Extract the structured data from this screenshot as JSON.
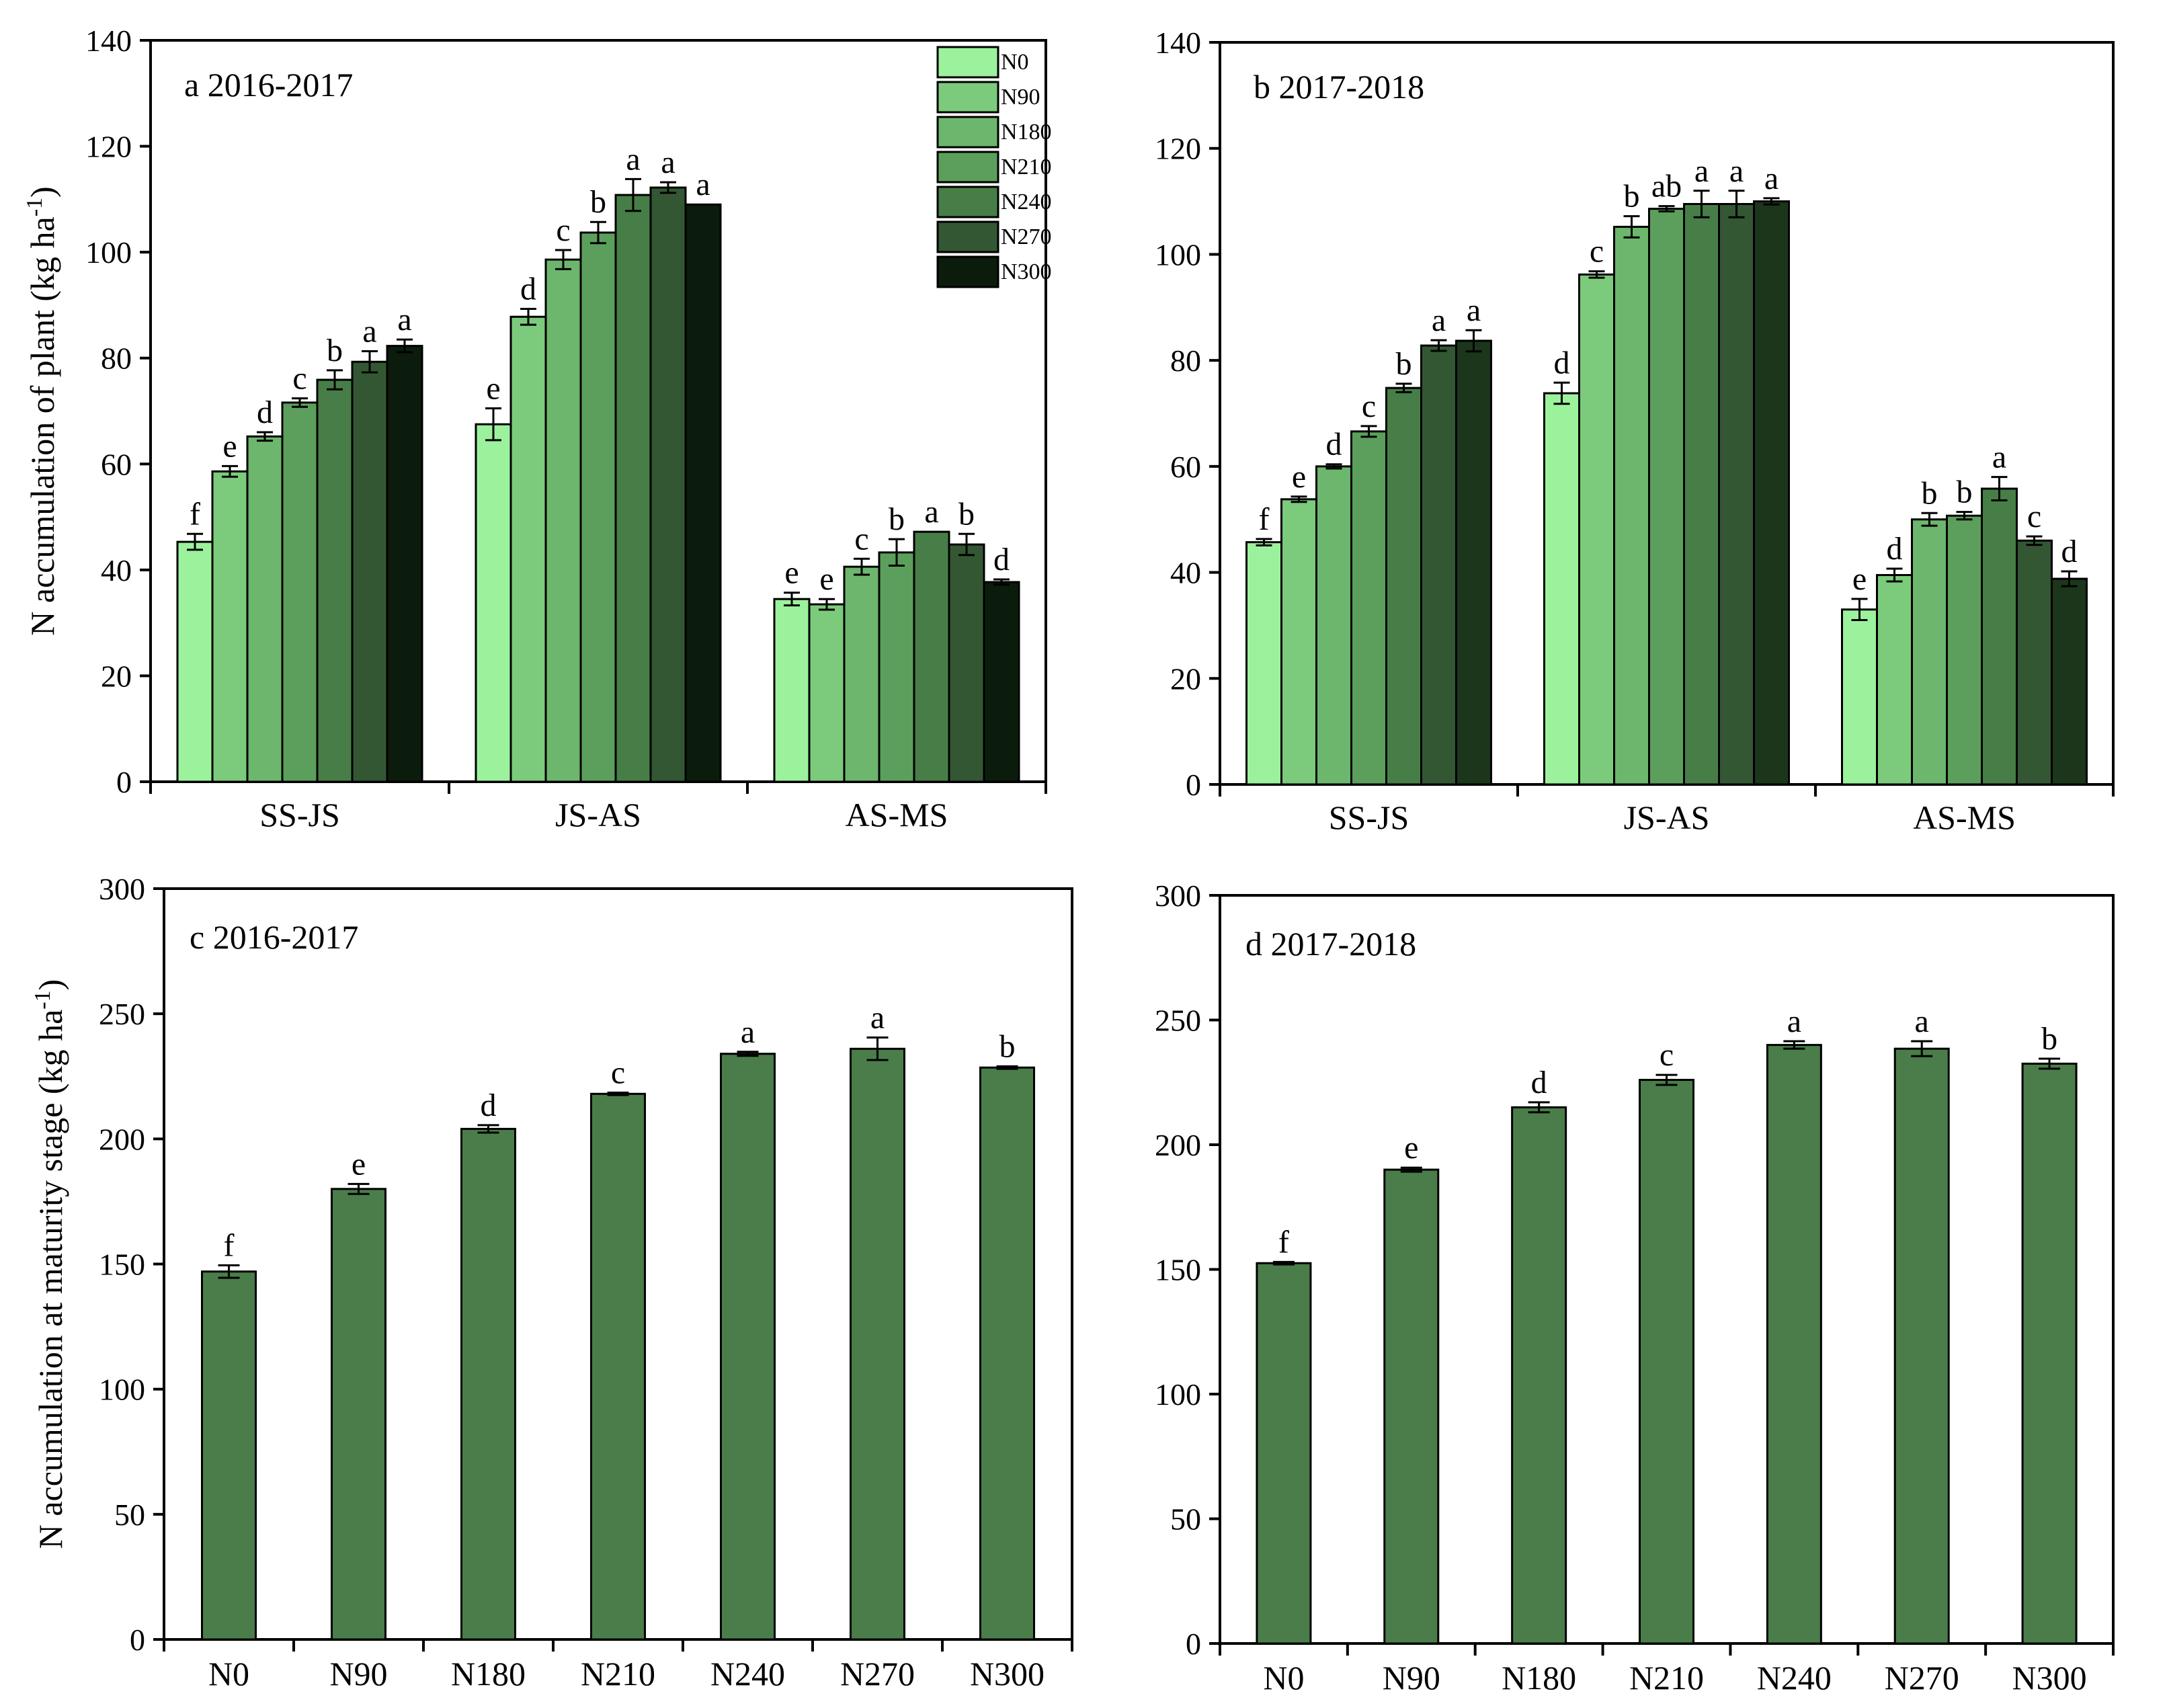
{
  "colors": {
    "N0": "#9cf29c",
    "N90": "#7ccb7c",
    "N180": "#6db66d",
    "N210": "#5c9f5c",
    "N240": "#477e47",
    "N270": "#335733",
    "N300": "#0c1c0c",
    "N300_b": "#1c361c",
    "maturity": "#4a7d4a"
  },
  "chart_data": [
    {
      "id": "a",
      "type": "bar",
      "title": "a 2016-2017",
      "ylabel": "N accumulation of plant (kg ha-1)",
      "ylabel_parts": [
        "N accumulation of plant (kg ha",
        "-1",
        ")"
      ],
      "ylim": [
        0,
        140
      ],
      "yticks": [
        0,
        20,
        40,
        60,
        80,
        100,
        120,
        140
      ],
      "categories": [
        "SS-JS",
        "JS-AS",
        "AS-MS"
      ],
      "legend": [
        "N0",
        "N90",
        "N180",
        "N210",
        "N240",
        "N270",
        "N300"
      ],
      "series": [
        {
          "name": "N0",
          "values": [
            45.3,
            67.5,
            34.5
          ],
          "errors": [
            1.5,
            3.0,
            1.2
          ],
          "letters": [
            "f",
            "e",
            "e"
          ]
        },
        {
          "name": "N90",
          "values": [
            58.6,
            87.8,
            33.5
          ],
          "errors": [
            1.0,
            1.5,
            1.0
          ],
          "letters": [
            "e",
            "d",
            "e"
          ]
        },
        {
          "name": "N180",
          "values": [
            65.2,
            98.6,
            40.6
          ],
          "errors": [
            0.8,
            1.8,
            1.5
          ],
          "letters": [
            "d",
            "c",
            "c"
          ]
        },
        {
          "name": "N210",
          "values": [
            71.6,
            103.7,
            43.3
          ],
          "errors": [
            0.8,
            2.0,
            2.5
          ],
          "letters": [
            "c",
            "b",
            "b"
          ]
        },
        {
          "name": "N240",
          "values": [
            75.9,
            110.8,
            47.2
          ],
          "errors": [
            1.8,
            3.0,
            0.0
          ],
          "letters": [
            "b",
            "a",
            "a"
          ]
        },
        {
          "name": "N270",
          "values": [
            79.3,
            112.2,
            44.8
          ],
          "errors": [
            2.0,
            1.0,
            2.0
          ],
          "letters": [
            "a",
            "a",
            "b"
          ]
        },
        {
          "name": "N300",
          "values": [
            82.3,
            109.0,
            37.7
          ],
          "errors": [
            1.2,
            0.0,
            0.5
          ],
          "letters": [
            "a",
            "a",
            "d"
          ]
        }
      ]
    },
    {
      "id": "b",
      "type": "bar",
      "title": "b 2017-2018",
      "ylabel": "",
      "ylim": [
        0,
        140
      ],
      "yticks": [
        0,
        20,
        40,
        60,
        80,
        100,
        120,
        140
      ],
      "categories": [
        "SS-JS",
        "JS-AS",
        "AS-MS"
      ],
      "series": [
        {
          "name": "N0",
          "values": [
            45.7,
            73.8,
            33.0
          ],
          "errors": [
            0.6,
            2.0,
            2.0
          ],
          "letters": [
            "f",
            "d",
            "e"
          ]
        },
        {
          "name": "N90",
          "values": [
            53.8,
            96.2,
            39.5
          ],
          "errors": [
            0.5,
            0.6,
            1.2
          ],
          "letters": [
            "e",
            "c",
            "d"
          ]
        },
        {
          "name": "N180",
          "values": [
            60.0,
            105.2,
            50.0
          ],
          "errors": [
            0.4,
            2.0,
            1.2
          ],
          "letters": [
            "d",
            "b",
            "b"
          ]
        },
        {
          "name": "N210",
          "values": [
            66.6,
            108.6,
            50.7
          ],
          "errors": [
            1.0,
            0.5,
            0.7
          ],
          "letters": [
            "c",
            "ab",
            "b"
          ]
        },
        {
          "name": "N240",
          "values": [
            74.8,
            109.5,
            55.8
          ],
          "errors": [
            0.8,
            2.5,
            2.2
          ],
          "letters": [
            "b",
            "a",
            "a"
          ]
        },
        {
          "name": "N270",
          "values": [
            82.8,
            109.5,
            46.0
          ],
          "errors": [
            1.0,
            2.5,
            0.8
          ],
          "letters": [
            "a",
            "a",
            "c"
          ]
        },
        {
          "name": "N300",
          "values": [
            83.7,
            110.0,
            38.8
          ],
          "errors": [
            2.0,
            0.6,
            1.4
          ],
          "letters": [
            "a",
            "a",
            "d"
          ]
        }
      ]
    },
    {
      "id": "c",
      "type": "bar",
      "title": "c 2016-2017",
      "ylabel": "N accumulation at maturity stage (kg ha-1)",
      "ylabel_parts": [
        "N accumulation at maturity stage (kg ha",
        "-1",
        ")"
      ],
      "ylim": [
        0,
        300
      ],
      "yticks": [
        0,
        50,
        100,
        150,
        200,
        250,
        300
      ],
      "categories": [
        "N0",
        "N90",
        "N180",
        "N210",
        "N240",
        "N270",
        "N300"
      ],
      "values": [
        147.0,
        180.0,
        204.0,
        218.0,
        234.0,
        236.0,
        228.5
      ],
      "errors": [
        2.5,
        2.0,
        1.5,
        0.5,
        0.8,
        4.5,
        0.5
      ],
      "letters": [
        "f",
        "e",
        "d",
        "c",
        "a",
        "a",
        "b"
      ]
    },
    {
      "id": "d",
      "type": "bar",
      "title": "d 2017-2018",
      "ylabel": "",
      "ylim": [
        0,
        300
      ],
      "yticks": [
        0,
        50,
        100,
        150,
        200,
        250,
        300
      ],
      "categories": [
        "N0",
        "N90",
        "N180",
        "N210",
        "N240",
        "N270",
        "N300"
      ],
      "values": [
        152.5,
        190.0,
        215.0,
        226.0,
        240.0,
        238.5,
        232.5
      ],
      "errors": [
        0.5,
        0.8,
        2.0,
        2.0,
        1.5,
        3.0,
        2.0
      ],
      "letters": [
        "f",
        "e",
        "d",
        "c",
        "a",
        "a",
        "b"
      ]
    }
  ]
}
